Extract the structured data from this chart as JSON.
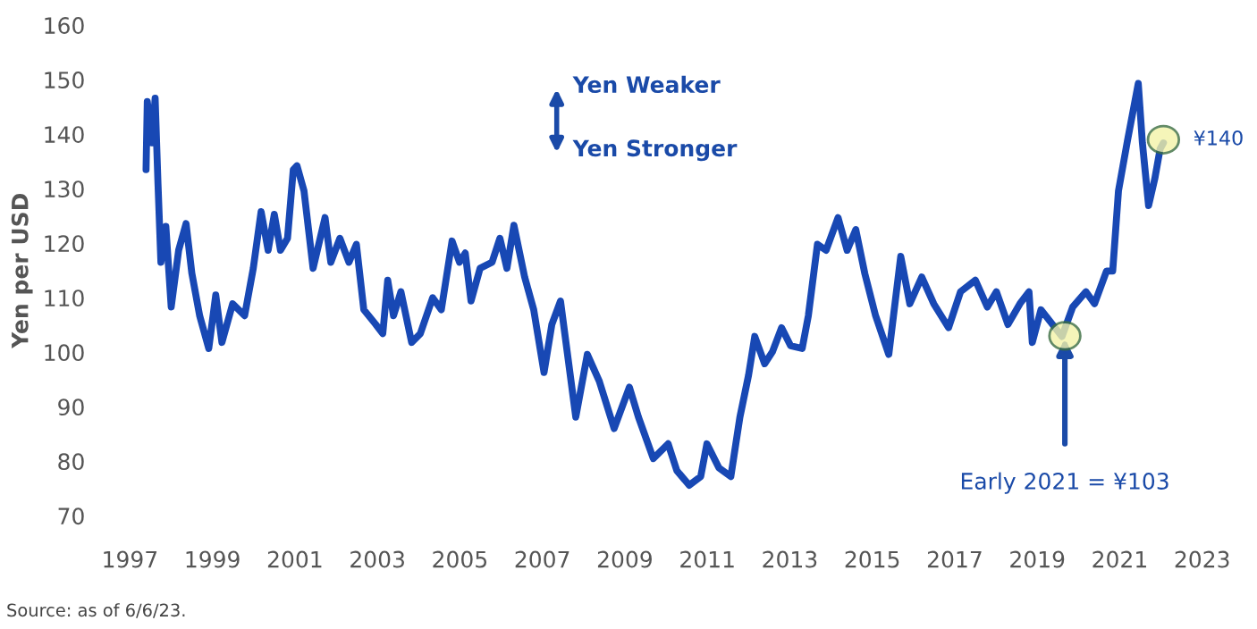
{
  "chart_data": {
    "type": "line",
    "ylabel": "Yen per USD",
    "xlim": [
      1997,
      2023
    ],
    "ylim": [
      70,
      160
    ],
    "xticks": [
      1997,
      1999,
      2001,
      2003,
      2005,
      2007,
      2009,
      2011,
      2013,
      2015,
      2017,
      2019,
      2021,
      2023
    ],
    "yticks": [
      70,
      80,
      90,
      100,
      110,
      120,
      130,
      140,
      150,
      160
    ],
    "grid": false,
    "legend": false,
    "series": [
      {
        "color": "#1848b4",
        "x": [
          1997.39,
          1997.42,
          1997.53,
          1997.61,
          1997.68,
          1997.75,
          1997.87,
          1998.0,
          1998.18,
          1998.36,
          1998.5,
          1998.69,
          1998.91,
          1999.08,
          1999.23,
          1999.49,
          1999.78,
          1999.99,
          2000.18,
          2000.35,
          2000.5,
          2000.65,
          2000.82,
          2000.96,
          2001.05,
          2001.22,
          2001.44,
          2001.73,
          2001.87,
          2002.09,
          2002.31,
          2002.49,
          2002.67,
          2002.96,
          2003.13,
          2003.25,
          2003.39,
          2003.57,
          2003.83,
          2004.04,
          2004.34,
          2004.55,
          2004.81,
          2004.99,
          2005.13,
          2005.27,
          2005.49,
          2005.78,
          2005.97,
          2006.14,
          2006.31,
          2006.57,
          2006.79,
          2007.04,
          2007.23,
          2007.44,
          2007.81,
          2008.09,
          2008.38,
          2008.74,
          2009.11,
          2009.33,
          2009.69,
          2010.05,
          2010.26,
          2010.56,
          2010.84,
          2010.99,
          2011.28,
          2011.57,
          2011.79,
          2012.0,
          2012.15,
          2012.39,
          2012.58,
          2012.8,
          2013.02,
          2013.3,
          2013.45,
          2013.67,
          2013.88,
          2014.17,
          2014.39,
          2014.6,
          2014.82,
          2015.08,
          2015.4,
          2015.69,
          2015.91,
          2016.2,
          2016.49,
          2016.85,
          2017.14,
          2017.5,
          2017.79,
          2018.01,
          2018.29,
          2018.58,
          2018.8,
          2018.88,
          2019.09,
          2019.6,
          2019.86,
          2020.18,
          2020.39,
          2020.68,
          2020.83,
          2020.97,
          2021.19,
          2021.45,
          2021.55,
          2021.7,
          2021.85,
          2021.98,
          2022.06
        ],
        "values": [
          133.5,
          146.0,
          138.4,
          146.6,
          130.8,
          116.5,
          123.1,
          108.3,
          118.7,
          123.6,
          114.5,
          106.7,
          100.7,
          110.5,
          101.8,
          108.9,
          106.7,
          115.4,
          125.8,
          118.7,
          125.3,
          118.7,
          120.9,
          133.5,
          134.2,
          129.6,
          115.4,
          124.7,
          116.5,
          120.9,
          116.5,
          119.8,
          107.8,
          105.1,
          103.4,
          113.2,
          106.7,
          111.1,
          101.8,
          103.4,
          110.0,
          107.8,
          120.4,
          116.5,
          118.2,
          109.4,
          115.4,
          116.5,
          120.9,
          115.4,
          123.3,
          113.8,
          107.8,
          96.3,
          105.1,
          109.4,
          88.1,
          99.6,
          94.7,
          86.0,
          93.6,
          88.1,
          80.5,
          83.2,
          78.3,
          75.6,
          77.2,
          83.2,
          78.8,
          77.2,
          88.1,
          95.8,
          102.9,
          97.9,
          100.1,
          104.5,
          101.2,
          100.7,
          106.7,
          119.8,
          118.7,
          124.7,
          118.7,
          122.5,
          114.4,
          106.7,
          99.6,
          117.6,
          108.9,
          113.8,
          108.9,
          104.5,
          111.1,
          113.2,
          108.3,
          111.1,
          105.1,
          108.9,
          111.1,
          101.8,
          107.8,
          102.9,
          108.3,
          111.1,
          108.9,
          114.9,
          114.9,
          129.6,
          138.9,
          149.3,
          138.4,
          126.9,
          131.8,
          137.3,
          138.4
        ]
      }
    ],
    "annotations": [
      "Yen Weaker",
      "Yen Stronger",
      {
        "text": "Early 2021 = ¥103",
        "x": 2019.67,
        "y": 103
      },
      {
        "text": "¥140",
        "x": 2022.06,
        "y": 139
      },
      "Source: as of 6/6/23."
    ]
  }
}
